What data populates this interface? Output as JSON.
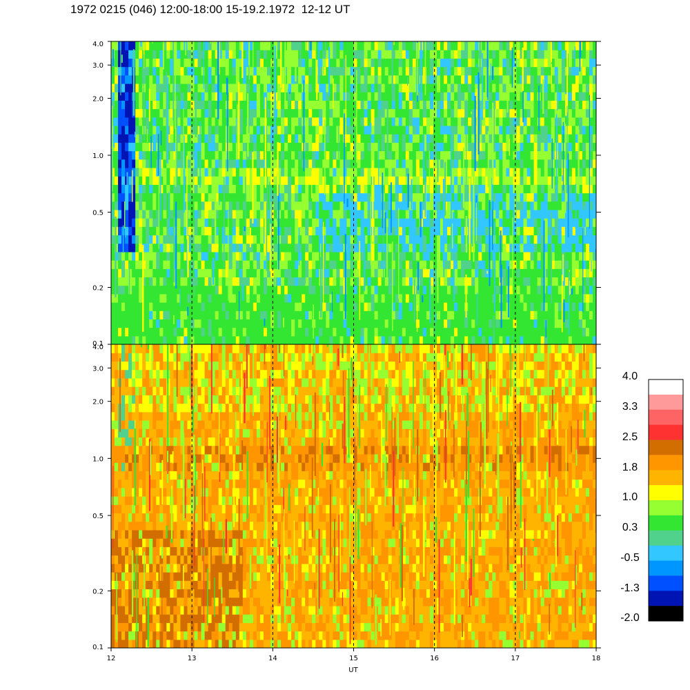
{
  "header": {
    "title": "1972 0215 (046) 12:00-18:00 15-19.2.1972  12-12 UT"
  },
  "chart_data": {
    "type": "heatmap",
    "title": "1972 0215 (046) 12:00-18:00 15-19.2.1972  12-12 UT",
    "xlabel": "UT",
    "x_ticks": [
      "12",
      "13",
      "14",
      "15",
      "16",
      "17",
      "18"
    ],
    "x_tick_values": [
      12,
      13,
      14,
      15,
      16,
      17,
      18
    ],
    "xlim": [
      12,
      18
    ],
    "dashed_verticals": [
      13,
      14,
      15,
      16,
      17
    ],
    "y_scale": "log",
    "panels": [
      {
        "name": "upper",
        "ylim": [
          0.1,
          4.0
        ],
        "y_ticks": [
          "4.0",
          "3.0",
          "2.0",
          "1.0",
          "0.5",
          "0.2",
          "0.1"
        ],
        "y_tick_values": [
          4.0,
          3.0,
          2.0,
          1.0,
          0.5,
          0.2,
          0.1
        ],
        "dominant_level": "0.3 to 1.0 (green-yellow), bluish -0.5 to -2.0 near 12.1-12.3 UT above 0.3"
      },
      {
        "name": "lower",
        "ylim": [
          0.1,
          4.0
        ],
        "y_ticks": [
          "4.0",
          "3.0",
          "2.0",
          "1.0",
          "0.5",
          "0.2",
          "0.1"
        ],
        "y_tick_values": [
          4.0,
          3.0,
          2.0,
          1.0,
          0.5,
          0.2,
          0.1
        ],
        "dominant_level": "1.0 to 2.5 (yellow-orange), orange band near 0.9-1.0"
      }
    ],
    "colorbar": {
      "labels": [
        "4.0",
        "3.3",
        "2.5",
        "1.8",
        "1.0",
        "0.3",
        "-0.5",
        "-1.3",
        "-2.0"
      ],
      "colors": [
        "#ffffff",
        "#ff9a9a",
        "#ff6464",
        "#ff3232",
        "#d26e00",
        "#ff9600",
        "#ffb400",
        "#ffff00",
        "#96ff32",
        "#32e632",
        "#50d28c",
        "#32c8ff",
        "#0096ff",
        "#0050ff",
        "#0014b4",
        "#000000"
      ]
    }
  }
}
